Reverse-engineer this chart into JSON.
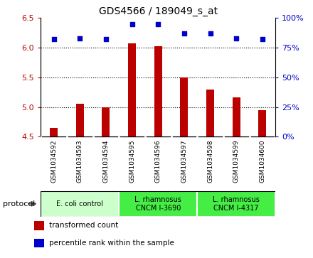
{
  "title": "GDS4566 / 189049_s_at",
  "samples": [
    "GSM1034592",
    "GSM1034593",
    "GSM1034594",
    "GSM1034595",
    "GSM1034596",
    "GSM1034597",
    "GSM1034598",
    "GSM1034599",
    "GSM1034600"
  ],
  "transformed_count": [
    4.65,
    5.05,
    5.0,
    6.07,
    6.03,
    5.5,
    5.3,
    5.16,
    4.95
  ],
  "percentile_rank": [
    82,
    83,
    82,
    95,
    95,
    87,
    87,
    83,
    82
  ],
  "ylim_left": [
    4.5,
    6.5
  ],
  "ylim_right": [
    0,
    100
  ],
  "yticks_left": [
    4.5,
    5.0,
    5.5,
    6.0,
    6.5
  ],
  "yticks_right": [
    0,
    25,
    50,
    75,
    100
  ],
  "bar_color": "#bb0000",
  "dot_color": "#0000cc",
  "groups": [
    {
      "label": "E. coli control",
      "start": 0,
      "end": 3,
      "color": "#ccffcc"
    },
    {
      "label": "L. rhamnosus\nCNCM I-3690",
      "start": 3,
      "end": 6,
      "color": "#44ee44"
    },
    {
      "label": "L. rhamnosus\nCNCM I-4317",
      "start": 6,
      "end": 9,
      "color": "#44ee44"
    }
  ],
  "protocol_label": "protocol",
  "legend_items": [
    {
      "color": "#bb0000",
      "label": "transformed count"
    },
    {
      "color": "#0000cc",
      "label": "percentile rank within the sample"
    }
  ],
  "grid_yticks": [
    5.0,
    5.5,
    6.0
  ],
  "bar_bottom": 4.5,
  "bar_width": 0.3,
  "sample_box_color": "#d8d8d8",
  "sample_box_border": "#ffffff"
}
